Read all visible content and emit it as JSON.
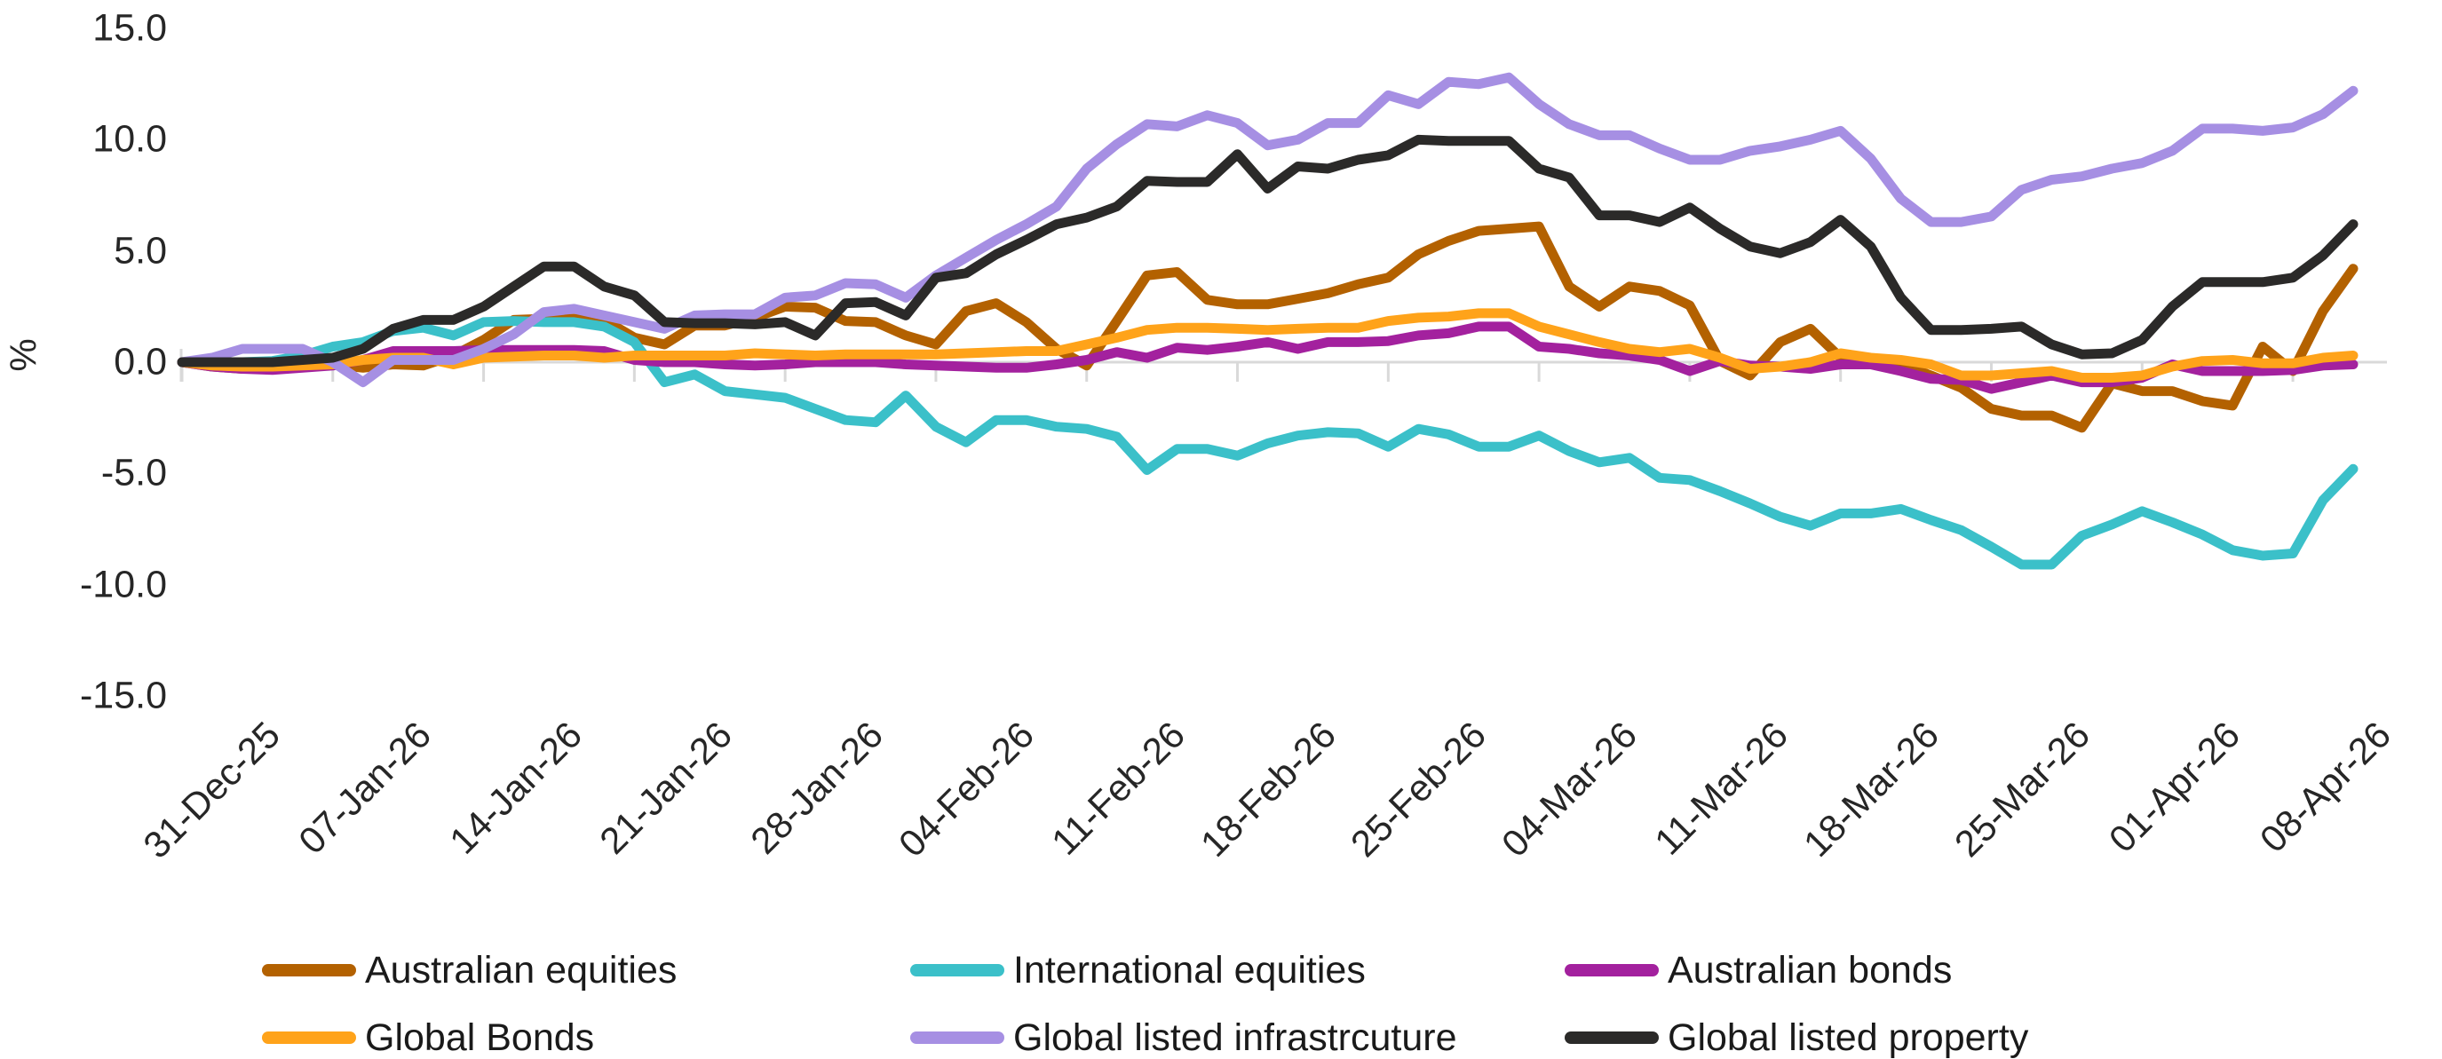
{
  "chart_data": {
    "type": "line",
    "title": "",
    "ylabel": "%",
    "ylim": [
      -15.0,
      15.0
    ],
    "ytick_step": 5.0,
    "ytick_labels": [
      "15.0",
      "10.0",
      "5.0",
      "0.0",
      "-5.0",
      "-10.0",
      "-15.0"
    ],
    "ytick_values": [
      15,
      10,
      5,
      0,
      -5,
      -10,
      -15
    ],
    "x_tick_labels": [
      "31-Dec-25",
      "07-Jan-26",
      "14-Jan-26",
      "21-Jan-26",
      "28-Jan-26",
      "04-Feb-26",
      "11-Feb-26",
      "18-Feb-26",
      "25-Feb-26",
      "04-Mar-26",
      "11-Mar-26",
      "18-Mar-26",
      "25-Mar-26",
      "01-Apr-26",
      "08-Apr-26"
    ],
    "points_per_tick": 5,
    "n_points": 73,
    "grid": "zero-line-only",
    "axis_color": "#D9D9D9",
    "text_color": "#262626",
    "legend_position": "bottom",
    "series": [
      {
        "name": "Australian equities",
        "color": "#B36100",
        "values": [
          0,
          -0.2,
          -0.3,
          -0.25,
          -0.2,
          -0.1,
          -0.25,
          -0.1,
          -0.15,
          0.3,
          1.0,
          1.9,
          1.95,
          1.95,
          1.9,
          1.1,
          0.8,
          1.65,
          1.65,
          2.0,
          2.5,
          2.45,
          1.85,
          1.8,
          1.2,
          0.8,
          2.3,
          2.65,
          1.8,
          0.6,
          -0.15,
          1.85,
          3.9,
          4.05,
          2.8,
          2.6,
          2.6,
          2.85,
          3.1,
          3.5,
          3.8,
          4.85,
          5.45,
          5.9,
          6.0,
          6.1,
          3.4,
          2.5,
          3.4,
          3.2,
          2.55,
          0.05,
          -0.6,
          0.9,
          1.5,
          0.2,
          -0.1,
          -0.1,
          -0.6,
          -1.15,
          -2.1,
          -2.4,
          -2.4,
          -2.95,
          -0.95,
          -1.3,
          -1.3,
          -1.75,
          -1.95,
          0.7,
          -0.4,
          2.3,
          4.2
        ]
      },
      {
        "name": "International equities",
        "color": "#3BC0C9",
        "values": [
          0,
          0,
          0,
          0.05,
          0.3,
          0.7,
          0.9,
          1.4,
          1.55,
          1.2,
          1.8,
          1.85,
          1.8,
          1.8,
          1.6,
          0.9,
          -0.9,
          -0.55,
          -1.3,
          -1.45,
          -1.6,
          -2.1,
          -2.6,
          -2.7,
          -1.5,
          -2.9,
          -3.6,
          -2.6,
          -2.6,
          -2.9,
          -3.0,
          -3.35,
          -4.85,
          -3.9,
          -3.9,
          -4.2,
          -3.65,
          -3.3,
          -3.15,
          -3.2,
          -3.8,
          -3.0,
          -3.25,
          -3.8,
          -3.8,
          -3.3,
          -4.0,
          -4.5,
          -4.3,
          -5.2,
          -5.3,
          -5.8,
          -6.35,
          -6.95,
          -7.35,
          -6.8,
          -6.8,
          -6.6,
          -7.1,
          -7.55,
          -8.3,
          -9.1,
          -9.1,
          -7.8,
          -7.3,
          -6.7,
          -7.2,
          -7.75,
          -8.45,
          -8.7,
          -8.6,
          -6.2,
          -4.8
        ]
      },
      {
        "name": "Australian bonds",
        "color": "#A3219E",
        "values": [
          0,
          -0.2,
          -0.3,
          -0.35,
          -0.25,
          -0.15,
          0.1,
          0.5,
          0.5,
          0.5,
          0.55,
          0.55,
          0.55,
          0.55,
          0.5,
          0.1,
          0.0,
          0.0,
          -0.1,
          -0.15,
          -0.1,
          0.0,
          0.0,
          0.0,
          -0.1,
          -0.15,
          -0.2,
          -0.25,
          -0.25,
          -0.1,
          0.1,
          0.45,
          0.2,
          0.65,
          0.55,
          0.7,
          0.9,
          0.6,
          0.9,
          0.9,
          0.95,
          1.2,
          1.3,
          1.6,
          1.6,
          0.7,
          0.6,
          0.4,
          0.3,
          0.1,
          -0.4,
          0.05,
          -0.15,
          -0.2,
          -0.3,
          -0.1,
          -0.1,
          -0.4,
          -0.75,
          -0.8,
          -1.2,
          -0.9,
          -0.6,
          -0.9,
          -0.9,
          -0.7,
          -0.1,
          -0.4,
          -0.4,
          -0.4,
          -0.35,
          -0.15,
          -0.1
        ]
      },
      {
        "name": "Global Bonds",
        "color": "#FFA31A",
        "values": [
          0,
          -0.15,
          -0.2,
          -0.2,
          -0.15,
          -0.1,
          0.1,
          0.2,
          0.2,
          -0.1,
          0.2,
          0.25,
          0.3,
          0.3,
          0.2,
          0.3,
          0.3,
          0.3,
          0.3,
          0.4,
          0.35,
          0.3,
          0.35,
          0.35,
          0.35,
          0.35,
          0.4,
          0.45,
          0.5,
          0.5,
          0.8,
          1.1,
          1.45,
          1.55,
          1.55,
          1.5,
          1.45,
          1.5,
          1.55,
          1.55,
          1.85,
          2.0,
          2.05,
          2.2,
          2.2,
          1.6,
          1.25,
          0.9,
          0.6,
          0.45,
          0.6,
          0.2,
          -0.3,
          -0.2,
          0.0,
          0.4,
          0.2,
          0.1,
          -0.1,
          -0.6,
          -0.6,
          -0.5,
          -0.4,
          -0.7,
          -0.7,
          -0.6,
          -0.2,
          0.05,
          0.1,
          -0.05,
          -0.05,
          0.2,
          0.3
        ]
      },
      {
        "name": "Global listed infrastrcuture",
        "color": "#A68FE3",
        "values": [
          0,
          0.2,
          0.6,
          0.6,
          0.6,
          0.0,
          -0.9,
          0.1,
          0.1,
          0.1,
          0.6,
          1.25,
          2.25,
          2.4,
          2.1,
          1.8,
          1.5,
          2.1,
          2.15,
          2.15,
          2.9,
          3.0,
          3.55,
          3.5,
          2.9,
          3.9,
          4.7,
          5.5,
          6.2,
          7.0,
          8.7,
          9.8,
          10.7,
          10.6,
          11.1,
          10.75,
          9.75,
          10.0,
          10.75,
          10.75,
          12.0,
          11.6,
          12.6,
          12.5,
          12.8,
          11.6,
          10.7,
          10.2,
          10.2,
          9.6,
          9.1,
          9.1,
          9.5,
          9.7,
          10.0,
          10.4,
          9.15,
          7.35,
          6.3,
          6.3,
          6.55,
          7.75,
          8.2,
          8.35,
          8.7,
          8.95,
          9.5,
          10.5,
          10.5,
          10.4,
          10.55,
          11.15,
          12.2
        ]
      },
      {
        "name": "Global listed property",
        "color": "#2B2A29",
        "values": [
          0,
          0,
          0,
          0,
          0.1,
          0.2,
          0.6,
          1.5,
          1.9,
          1.9,
          2.5,
          3.4,
          4.3,
          4.3,
          3.4,
          3.0,
          1.8,
          1.75,
          1.75,
          1.7,
          1.8,
          1.2,
          2.65,
          2.7,
          2.1,
          3.8,
          4.0,
          4.85,
          5.5,
          6.2,
          6.5,
          7.0,
          8.15,
          8.1,
          8.1,
          9.35,
          7.8,
          8.8,
          8.7,
          9.1,
          9.3,
          10.0,
          9.95,
          9.95,
          9.95,
          8.7,
          8.3,
          6.6,
          6.6,
          6.3,
          6.95,
          6.0,
          5.2,
          4.9,
          5.4,
          6.4,
          5.2,
          2.9,
          1.45,
          1.45,
          1.5,
          1.6,
          0.8,
          0.35,
          0.4,
          1.0,
          2.5,
          3.6,
          3.6,
          3.6,
          3.8,
          4.8,
          6.2
        ]
      }
    ],
    "legend_rows": [
      [
        "Australian equities",
        "International equities",
        "Australian bonds"
      ],
      [
        "Global Bonds",
        "Global listed infrastrcuture",
        "Global listed property"
      ]
    ]
  }
}
